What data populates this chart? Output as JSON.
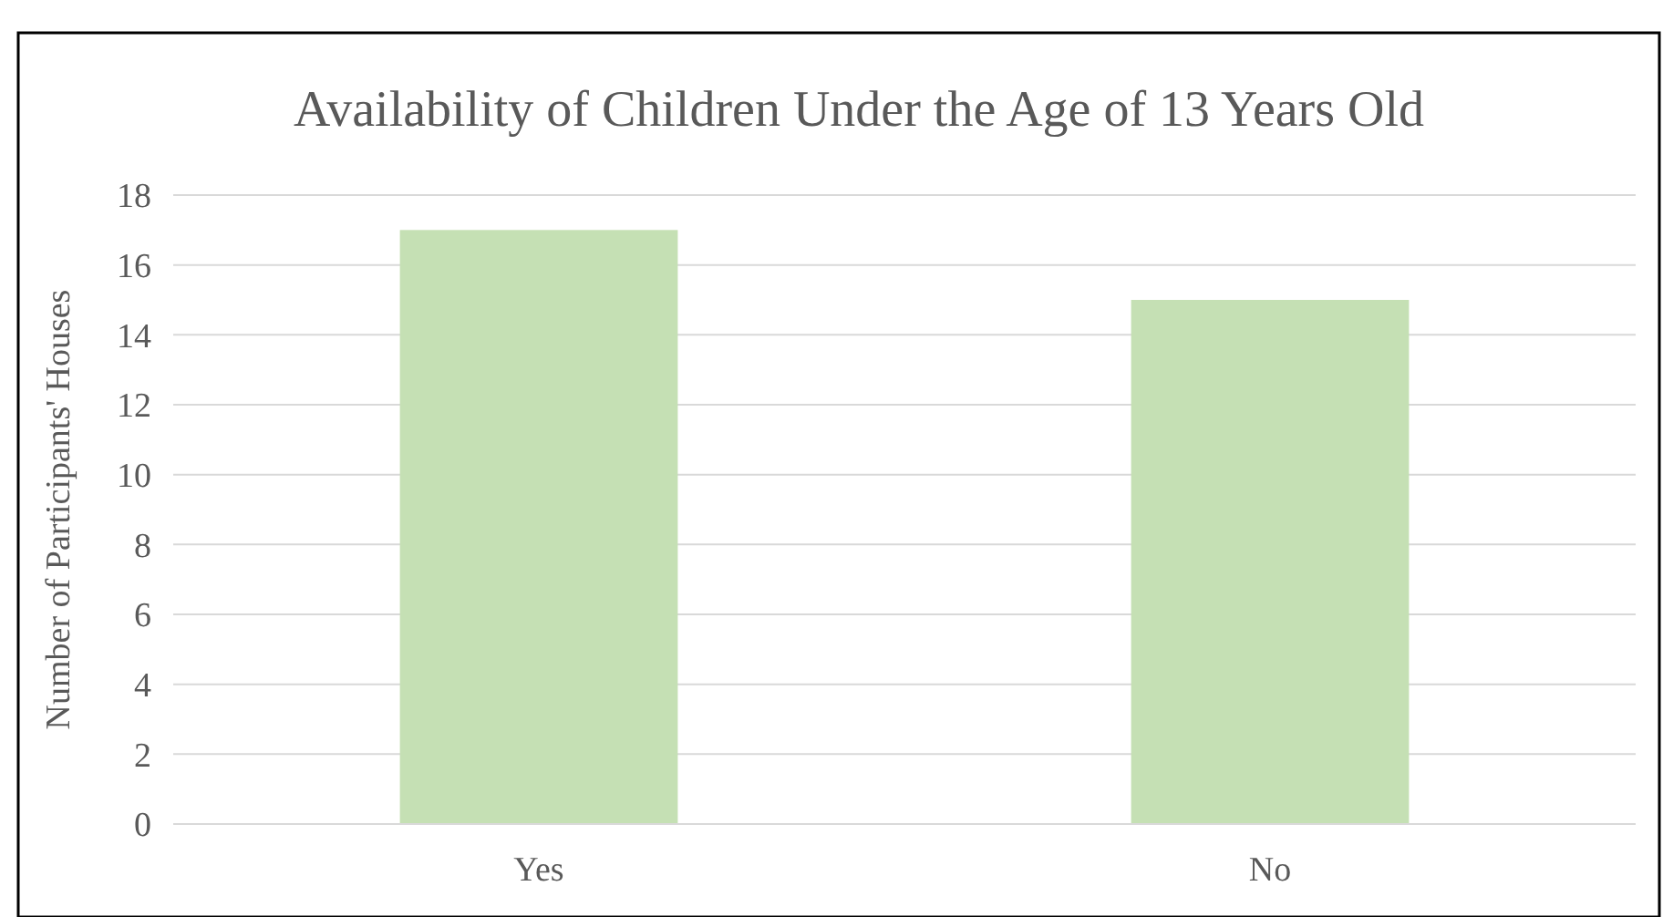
{
  "chart_data": {
    "type": "bar",
    "title": "Availability  of Children  Under the Age of 13 Years Old",
    "ylabel": "Number of Participants' Houses",
    "categories": [
      "Yes",
      "No"
    ],
    "values": [
      17,
      15
    ],
    "color": "#c5e0b4",
    "ylim": [
      0,
      18
    ],
    "yticks": [
      0,
      2,
      4,
      6,
      8,
      10,
      12,
      14,
      16,
      18
    ],
    "grid": "y"
  }
}
